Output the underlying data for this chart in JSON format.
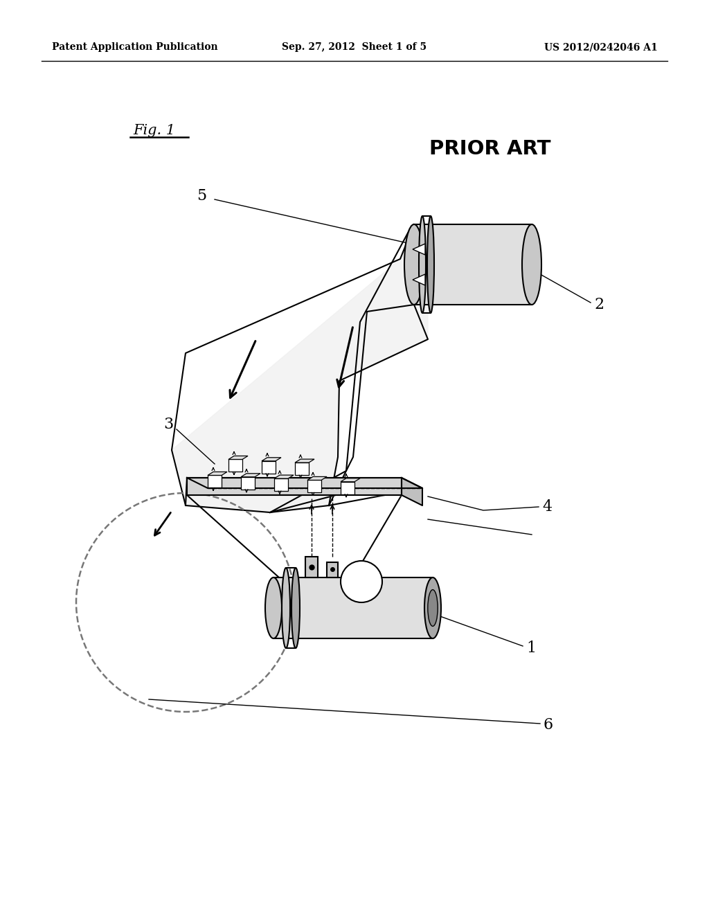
{
  "bg_color": "#ffffff",
  "header_left": "Patent Application Publication",
  "header_center": "Sep. 27, 2012  Sheet 1 of 5",
  "header_right": "US 2012/0242046 A1",
  "lc": "#000000",
  "gray_light": "#e0e0e0",
  "gray_mid": "#c8c8c8",
  "gray_dark": "#a8a8a8",
  "dash_color": "#555555"
}
